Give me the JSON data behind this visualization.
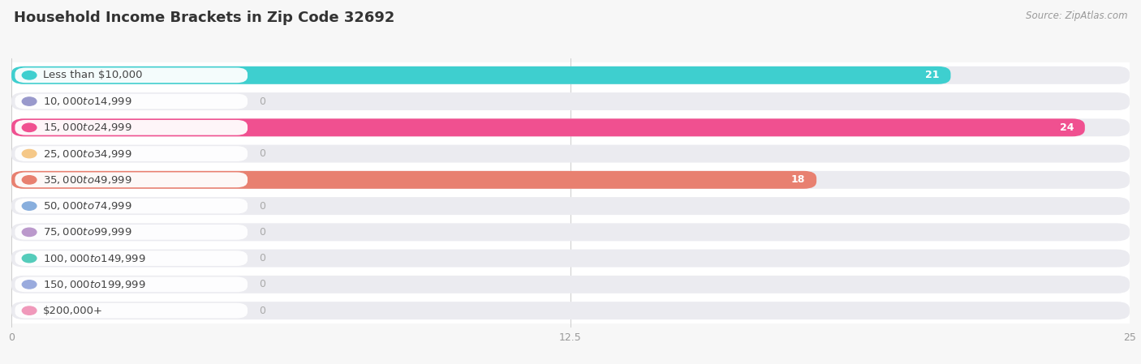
{
  "title": "Household Income Brackets in Zip Code 32692",
  "source": "Source: ZipAtlas.com",
  "categories": [
    "Less than $10,000",
    "$10,000 to $14,999",
    "$15,000 to $24,999",
    "$25,000 to $34,999",
    "$35,000 to $49,999",
    "$50,000 to $74,999",
    "$75,000 to $99,999",
    "$100,000 to $149,999",
    "$150,000 to $199,999",
    "$200,000+"
  ],
  "values": [
    21,
    0,
    24,
    0,
    18,
    0,
    0,
    0,
    0,
    0
  ],
  "bar_colors": [
    "#3ecfcf",
    "#9999cc",
    "#f05090",
    "#f5c888",
    "#e88070",
    "#88aedd",
    "#bb99cc",
    "#55ccbb",
    "#99aadd",
    "#f099bb"
  ],
  "xlim": [
    0,
    25
  ],
  "xticks": [
    0,
    12.5,
    25
  ],
  "background_color": "#f7f7f7",
  "row_bg_color": "#ebebf0",
  "row_sep_color": "#ffffff",
  "title_fontsize": 13,
  "label_fontsize": 9.5,
  "value_fontsize": 9
}
